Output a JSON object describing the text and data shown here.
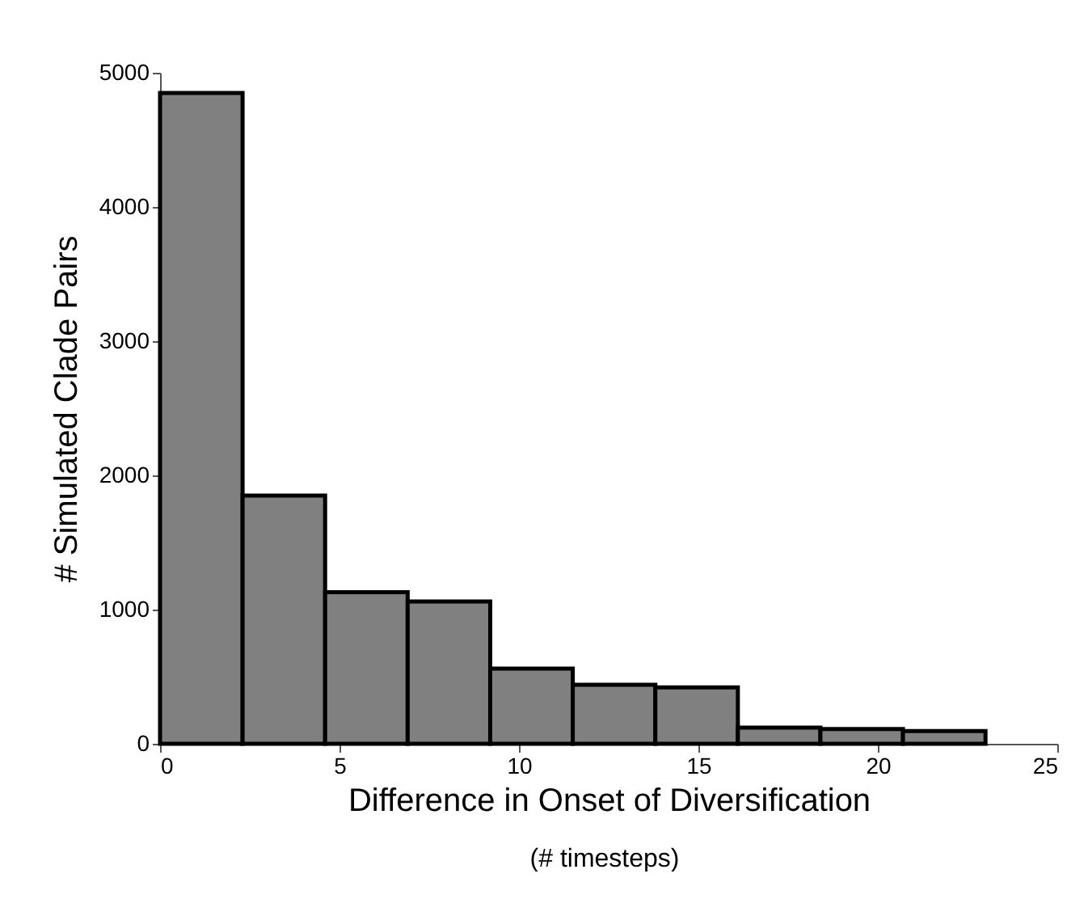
{
  "chart_data": {
    "type": "histogram",
    "xlabel": "Difference in Onset of Diversification",
    "annotations": [
      "(# timesteps)"
    ],
    "ylabel": "# Simulated Clade Pairs",
    "bins": [
      0,
      2.3,
      4.6,
      6.9,
      9.2,
      11.5,
      13.8,
      16.1,
      18.4,
      20.7,
      23
    ],
    "values": [
      4850,
      1850,
      1130,
      1060,
      560,
      440,
      420,
      120,
      110,
      95
    ],
    "color": "#808080",
    "xlim": [
      0,
      25
    ],
    "xticks": [
      0,
      5,
      10,
      15,
      20,
      25
    ],
    "ylim": [
      0,
      5000
    ],
    "yticks": [
      0,
      1000,
      2000,
      3000,
      4000,
      5000
    ],
    "grid": false
  }
}
